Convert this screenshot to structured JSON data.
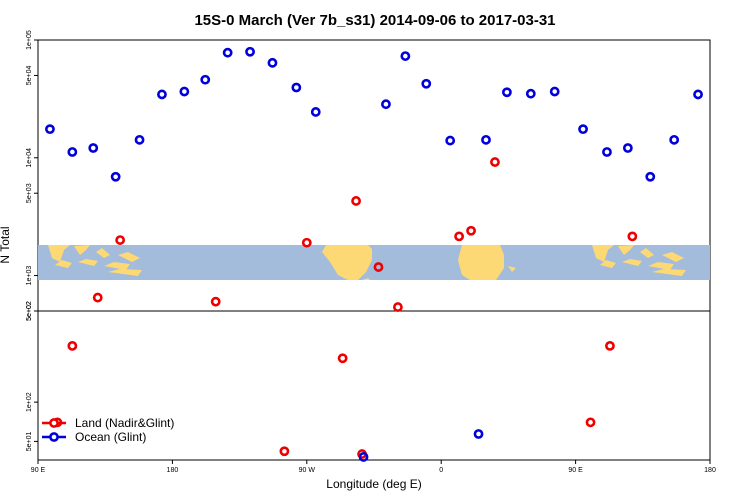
{
  "chart_data": {
    "type": "scatter",
    "title": "15S-0 March (Ver 7b_s31)   2014-09-06 to 2017-03-31",
    "xlabel": "Longitude (deg E)",
    "ylabel": "N Total",
    "x_ticks": [
      {
        "value": 90,
        "label": "90 E"
      },
      {
        "value": 180,
        "label": "180"
      },
      {
        "value": 270,
        "label": "90 W"
      },
      {
        "value": 360,
        "label": "0"
      },
      {
        "value": 450,
        "label": "90 E"
      },
      {
        "value": 540,
        "label": "180"
      }
    ],
    "xlim": [
      90,
      540
    ],
    "upper_y_ticks": [
      {
        "value": 500,
        "label": "5e+02"
      },
      {
        "value": 1000,
        "label": "1e+03"
      },
      {
        "value": 5000,
        "label": "5e+03"
      },
      {
        "value": 10000,
        "label": "1e+04"
      },
      {
        "value": 50000,
        "label": "5e+04"
      },
      {
        "value": 100000,
        "label": "1e+05"
      }
    ],
    "upper_ylim": [
      500,
      100000
    ],
    "upper_yscale": "log",
    "lower_y_ticks": [
      {
        "value": 50,
        "label": "5e+01"
      },
      {
        "value": 100,
        "label": "1e+02"
      },
      {
        "value": 500,
        "label": "5e+02"
      }
    ],
    "lower_ylim": [
      36,
      500
    ],
    "lower_yscale": "log",
    "legend_position": "bottom-left",
    "series": [
      {
        "name": "Land (Nadir&Glint)",
        "color": "#ee0000",
        "panel": "lower",
        "points": [
          {
            "x": 103,
            "y": 70
          },
          {
            "x": 113,
            "y": 270
          },
          {
            "x": 255,
            "y": 42
          },
          {
            "x": 294,
            "y": 217
          },
          {
            "x": 307,
            "y": 40
          },
          {
            "x": 460,
            "y": 70
          },
          {
            "x": 473,
            "y": 270
          }
        ]
      },
      {
        "name": "Land (Nadir&Glint)",
        "color": "#ee0000",
        "panel": "upper",
        "points": [
          {
            "x": 130,
            "y": 650
          },
          {
            "x": 209,
            "y": 600
          },
          {
            "x": 331,
            "y": 540
          },
          {
            "x": 145,
            "y": 2000
          },
          {
            "x": 270,
            "y": 1900
          },
          {
            "x": 318,
            "y": 1180
          },
          {
            "x": 303,
            "y": 4300
          },
          {
            "x": 372,
            "y": 2150
          },
          {
            "x": 380,
            "y": 2400
          },
          {
            "x": 396,
            "y": 9200
          },
          {
            "x": 488,
            "y": 2150
          }
        ]
      },
      {
        "name": "Ocean (Glint)",
        "color": "#0000dd",
        "panel": "upper",
        "points": [
          {
            "x": 98,
            "y": 17500
          },
          {
            "x": 113,
            "y": 11200
          },
          {
            "x": 127,
            "y": 12100
          },
          {
            "x": 142,
            "y": 6900
          },
          {
            "x": 158,
            "y": 14200
          },
          {
            "x": 173,
            "y": 34500
          },
          {
            "x": 188,
            "y": 36500
          },
          {
            "x": 202,
            "y": 46000
          },
          {
            "x": 217,
            "y": 78000
          },
          {
            "x": 232,
            "y": 79500
          },
          {
            "x": 247,
            "y": 64000
          },
          {
            "x": 263,
            "y": 39500
          },
          {
            "x": 276,
            "y": 24500
          },
          {
            "x": 323,
            "y": 28500
          },
          {
            "x": 336,
            "y": 73000
          },
          {
            "x": 350,
            "y": 42500
          },
          {
            "x": 366,
            "y": 14000
          },
          {
            "x": 390,
            "y": 14200
          },
          {
            "x": 404,
            "y": 36000
          },
          {
            "x": 420,
            "y": 35000
          },
          {
            "x": 436,
            "y": 36500
          },
          {
            "x": 455,
            "y": 17500
          },
          {
            "x": 471,
            "y": 11200
          },
          {
            "x": 485,
            "y": 12100
          },
          {
            "x": 500,
            "y": 6900
          },
          {
            "x": 516,
            "y": 14200
          },
          {
            "x": 532,
            "y": 34500
          }
        ]
      },
      {
        "name": "Ocean (Glint)",
        "color": "#0000dd",
        "panel": "lower",
        "points": [
          {
            "x": 308,
            "y": 38
          },
          {
            "x": 385,
            "y": 57
          }
        ]
      }
    ],
    "legend": [
      {
        "label": "Land (Nadir&Glint)",
        "color": "#ee0000"
      },
      {
        "label": "Ocean (Glint)",
        "color": "#0000dd"
      }
    ],
    "map_strip": {
      "ocean_color": "#a4bcdc",
      "land_color": "#fcd975"
    }
  }
}
